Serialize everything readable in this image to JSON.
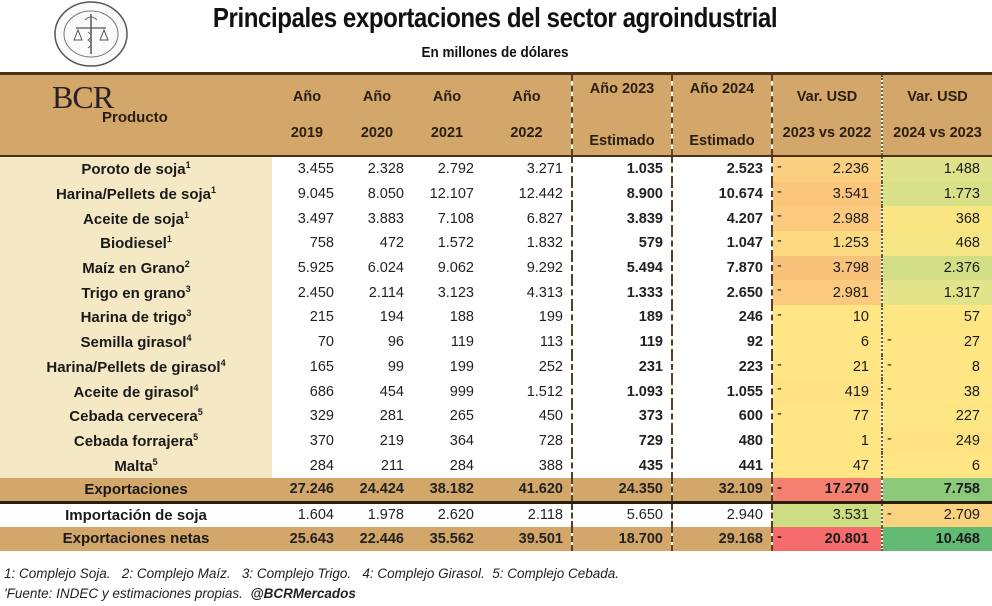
{
  "logo": {
    "name": "seal-logo",
    "text": "BOLSA DE COMERCIO DE ROSARIO"
  },
  "header": {
    "title": "Principales exportaciones del sector agroindustrial",
    "subtitle": "En millones de dólares"
  },
  "table": {
    "brand": "BCR",
    "columns": {
      "product": "Producto",
      "y2019": {
        "l1": "Año",
        "l2": "2019"
      },
      "y2020": {
        "l1": "Año",
        "l2": "2020"
      },
      "y2021": {
        "l1": "Año",
        "l2": "2021"
      },
      "y2022": {
        "l1": "Año",
        "l2": "2022"
      },
      "e2023": {
        "l1": "Año 2023",
        "l2": "Estimado"
      },
      "e2024": {
        "l1": "Año 2024",
        "l2": "Estimado"
      },
      "v1": {
        "l1": "Var. USD",
        "l2": "2023 vs 2022"
      },
      "v2": {
        "l1": "Var. USD",
        "l2": "2024 vs 2023"
      }
    },
    "rows": [
      {
        "product": "Poroto de soja",
        "note": "1",
        "y2019": "3.455",
        "y2020": "2.328",
        "y2021": "2.792",
        "y2022": "3.271",
        "e2023": "1.035",
        "e2024": "2.523",
        "v1_sign": "-",
        "v1": "2.236",
        "v2_sign": "",
        "v2": "1.488",
        "v1_color": "#fbcf80",
        "v2_color": "#dfe28a"
      },
      {
        "product": "Harina/Pellets de soja",
        "note": "1",
        "y2019": "9.045",
        "y2020": "8.050",
        "y2021": "12.107",
        "y2022": "12.442",
        "e2023": "8.900",
        "e2024": "10.674",
        "v1_sign": "-",
        "v1": "3.541",
        "v2_sign": "",
        "v2": "1.773",
        "v1_color": "#f9c67c",
        "v2_color": "#d9e188"
      },
      {
        "product": "Aceite de soja",
        "note": "1",
        "y2019": "3.497",
        "y2020": "3.883",
        "y2021": "7.108",
        "y2022": "6.827",
        "e2023": "3.839",
        "e2024": "4.207",
        "v1_sign": "-",
        "v1": "2.988",
        "v2_sign": "",
        "v2": "368",
        "v1_color": "#fbca7e",
        "v2_color": "#f9e582"
      },
      {
        "product": "Biodiesel",
        "note": "1",
        "y2019": "758",
        "y2020": "472",
        "y2021": "1.572",
        "y2022": "1.832",
        "e2023": "579",
        "e2024": "1.047",
        "v1_sign": "-",
        "v1": "1.253",
        "v2_sign": "",
        "v2": "468",
        "v1_color": "#fdda82",
        "v2_color": "#f5e584"
      },
      {
        "product": "Maíz en Grano",
        "note": "2",
        "y2019": "5.925",
        "y2020": "6.024",
        "y2021": "9.062",
        "y2022": "9.292",
        "e2023": "5.494",
        "e2024": "7.870",
        "v1_sign": "-",
        "v1": "3.798",
        "v2_sign": "",
        "v2": "2.376",
        "v1_color": "#f9c27b",
        "v2_color": "#d1de86"
      },
      {
        "product": "Trigo en grano",
        "note": "3",
        "y2019": "2.450",
        "y2020": "2.114",
        "y2021": "3.123",
        "y2022": "4.313",
        "e2023": "1.333",
        "e2024": "2.650",
        "v1_sign": "-",
        "v1": "2.981",
        "v2_sign": "",
        "v2": "1.317",
        "v1_color": "#fbca7e",
        "v2_color": "#e3e38a"
      },
      {
        "product": "Harina de trigo",
        "note": "3",
        "y2019": "215",
        "y2020": "194",
        "y2021": "188",
        "y2022": "199",
        "e2023": "189",
        "e2024": "246",
        "v1_sign": "-",
        "v1": "10",
        "v2_sign": "",
        "v2": "57",
        "v1_color": "#ffe584",
        "v2_color": "#fde783"
      },
      {
        "product": "Semilla girasol",
        "note": "4",
        "y2019": "70",
        "y2020": "96",
        "y2021": "119",
        "y2022": "113",
        "e2023": "119",
        "e2024": "92",
        "v1_sign": "",
        "v1": "6",
        "v2_sign": "-",
        "v2": "27",
        "v1_color": "#ffe584",
        "v2_color": "#ffe583"
      },
      {
        "product": "Harina/Pellets de girasol",
        "note": "4",
        "y2019": "165",
        "y2020": "99",
        "y2021": "199",
        "y2022": "252",
        "e2023": "231",
        "e2024": "223",
        "v1_sign": "-",
        "v1": "21",
        "v2_sign": "-",
        "v2": "8",
        "v1_color": "#ffe584",
        "v2_color": "#ffe583"
      },
      {
        "product": "Aceite de girasol",
        "note": "4",
        "y2019": "686",
        "y2020": "454",
        "y2021": "999",
        "y2022": "1.512",
        "e2023": "1.093",
        "e2024": "1.055",
        "v1_sign": "-",
        "v1": "419",
        "v2_sign": "-",
        "v2": "38",
        "v1_color": "#ffe283",
        "v2_color": "#ffe583"
      },
      {
        "product": "Cebada cervecera",
        "note": "5",
        "y2019": "329",
        "y2020": "281",
        "y2021": "265",
        "y2022": "450",
        "e2023": "373",
        "e2024": "600",
        "v1_sign": "-",
        "v1": "77",
        "v2_sign": "",
        "v2": "227",
        "v1_color": "#ffe584",
        "v2_color": "#fbe683"
      },
      {
        "product": "Cebada forrajera",
        "note": "5",
        "y2019": "370",
        "y2020": "219",
        "y2021": "364",
        "y2022": "728",
        "e2023": "729",
        "e2024": "480",
        "v1_sign": "",
        "v1": "1",
        "v2_sign": "-",
        "v2": "249",
        "v1_color": "#ffe584",
        "v2_color": "#ffe383"
      },
      {
        "product": "Malta",
        "note": "5",
        "y2019": "284",
        "y2020": "211",
        "y2021": "284",
        "y2022": "388",
        "e2023": "435",
        "e2024": "441",
        "v1_sign": "",
        "v1": "47",
        "v2_sign": "",
        "v2": "6",
        "v1_color": "#ffe584",
        "v2_color": "#ffe583"
      }
    ],
    "totals": {
      "exportaciones": {
        "product": "Exportaciones",
        "y2019": "27.246",
        "y2020": "24.424",
        "y2021": "38.182",
        "y2022": "41.620",
        "e2023": "24.350",
        "e2024": "32.109",
        "v1_sign": "-",
        "v1": "17.270",
        "v2_sign": "",
        "v2": "7.758",
        "v1_color": "#f6806f",
        "v2_color": "#8cc97a"
      },
      "importacion": {
        "product": "Importación de soja",
        "y2019": "1.604",
        "y2020": "1.978",
        "y2021": "2.620",
        "y2022": "2.118",
        "e2023": "5.650",
        "e2024": "2.940",
        "v1_sign": "",
        "v1": "3.531",
        "v2_sign": "-",
        "v2": "2.709",
        "v1_color": "#cfdd82",
        "v2_color": "#fbd380"
      },
      "netas": {
        "product": "Exportaciones netas",
        "y2019": "25.643",
        "y2020": "22.446",
        "y2021": "35.562",
        "y2022": "39.501",
        "e2023": "18.700",
        "e2024": "29.168",
        "v1_sign": "-",
        "v1": "20.801",
        "v2_sign": "",
        "v2": "10.468",
        "v1_color": "#f66c6c",
        "v2_color": "#63bb73"
      }
    }
  },
  "footnotes": {
    "line1": "1: Complejo Soja.   2: Complejo Maíz.   3: Complejo Trigo.   4: Complejo Girasol.  5: Complejo Cebada.",
    "line2_mark": "'",
    "line2": "Fuente: INDEC y estimaciones propias.  ",
    "handle": "@BCRMercados"
  },
  "colors": {
    "header_bg": "#d3a66a",
    "product_bg": "#f5e8c4",
    "border_dark": "#4a3218"
  }
}
